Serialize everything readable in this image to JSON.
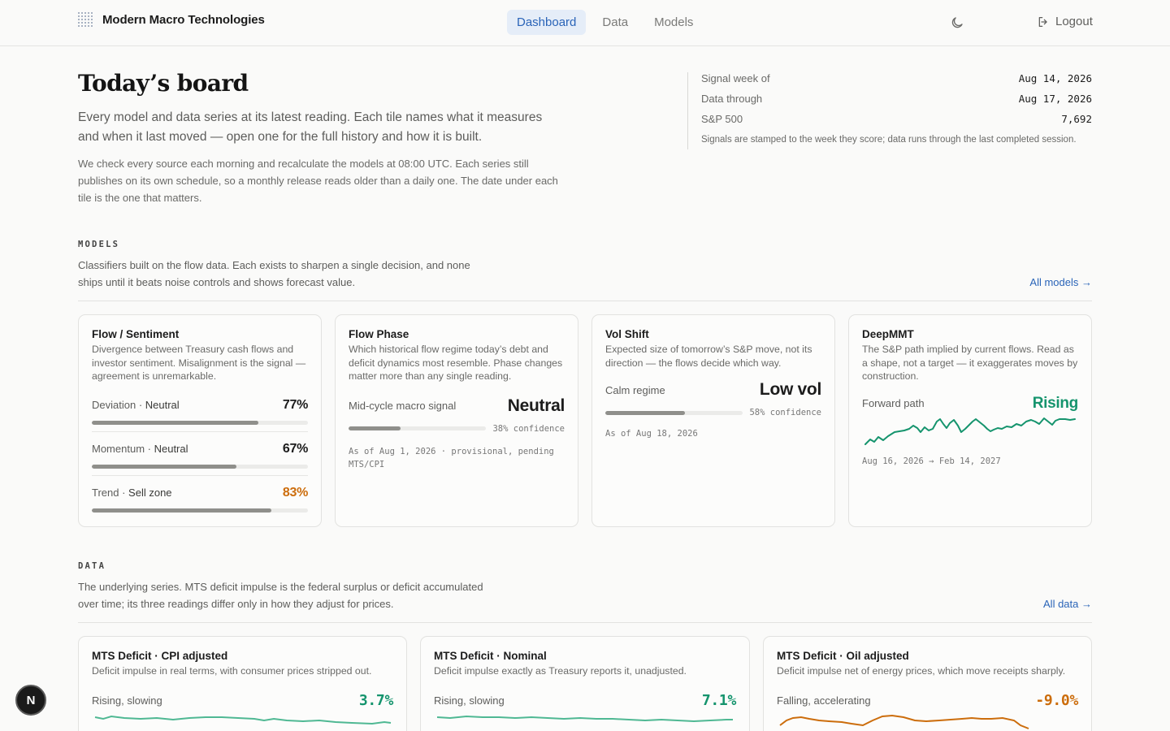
{
  "header": {
    "brand": "Modern Macro Technologies",
    "nav": [
      {
        "label": "Dashboard",
        "active": true
      },
      {
        "label": "Data",
        "active": false
      },
      {
        "label": "Models",
        "active": false
      }
    ],
    "theme_icon": "moon-icon",
    "logout_icon": "logout-icon",
    "logout_label": "Logout"
  },
  "hero": {
    "title": "Today’s board",
    "lead": "Every model and data series at its latest reading. Each tile names what it measures and when it last moved — open one for the full history and how it is built.",
    "body": "We check every source each morning and recalculate the models at 08:00 UTC. Each series still publishes on its own schedule, so a monthly release reads older than a daily one. The date under each tile is the one that matters."
  },
  "meta": {
    "rows": [
      {
        "label": "Signal week of",
        "value": "Aug 14, 2026"
      },
      {
        "label": "Data through",
        "value": "Aug 17, 2026"
      },
      {
        "label": "S&P 500",
        "value": "7,692"
      }
    ],
    "note": "Signals are stamped to the week they score; data runs through the last completed session."
  },
  "models": {
    "label": "MODELS",
    "desc": "Classifiers built on the flow data. Each exists to sharpen a single decision, and none ships until it beats noise controls and shows forecast value.",
    "link": "All models →",
    "cards": {
      "flow": {
        "title": "Flow / Sentiment",
        "desc": "Divergence between Treasury cash flows and investor sentiment. Misalignment is the signal — agreement is unremarkable.",
        "metrics": [
          {
            "name": "Deviation",
            "state": "Neutral",
            "value": "77%",
            "fill": 0.77,
            "color": "#1c1c1c"
          },
          {
            "name": "Momentum",
            "state": "Neutral",
            "value": "67%",
            "fill": 0.67,
            "color": "#1c1c1c"
          },
          {
            "name": "Trend",
            "state": "Sell zone",
            "value": "83%",
            "fill": 0.83,
            "color": "#cc6d0c"
          }
        ]
      },
      "phase": {
        "title": "Flow Phase",
        "desc": "Which historical flow regime today’s debt and deficit dynamics most resemble. Phase changes matter more than any single reading.",
        "label": "Mid-cycle macro signal",
        "value": "Neutral",
        "confidence": "38% confidence",
        "fill": 0.38,
        "asof": "As of Aug 1, 2026 · provisional, pending MTS/CPI"
      },
      "vol": {
        "title": "Vol Shift",
        "desc": "Expected size of tomorrow’s S&P move, not its direction — the flows decide which way.",
        "label": "Calm regime",
        "value": "Low vol",
        "confidence": "58% confidence",
        "fill": 0.58,
        "asof": "As of Aug 18, 2026"
      },
      "deep": {
        "title": "DeepMMT",
        "desc": "The S&P path implied by current flows. Read as a shape, not a target — it exaggerates moves by construction.",
        "label": "Forward path",
        "value": "Rising",
        "range": "Aug 16, 2026 → Feb 14, 2027",
        "color": "#15946d"
      }
    }
  },
  "data": {
    "label": "DATA",
    "desc": "The underlying series. MTS deficit impulse is the federal surplus or deficit accumulated over time; its three readings differ only in how they adjust for prices.",
    "link": "All data →",
    "cards": [
      {
        "title": "MTS Deficit · CPI adjusted",
        "desc": "Deficit impulse in real terms, with consumer prices stripped out.",
        "trend": "Rising, slowing",
        "value": "3.7%",
        "color": "#15946d"
      },
      {
        "title": "MTS Deficit · Nominal",
        "desc": "Deficit impulse exactly as Treasury reports it, unadjusted.",
        "trend": "Rising, slowing",
        "value": "7.1%",
        "color": "#15946d"
      },
      {
        "title": "MTS Deficit · Oil adjusted",
        "desc": "Deficit impulse net of energy prices, which move receipts sharply.",
        "trend": "Falling, accelerating",
        "value": "-9.0%",
        "color": "#cc6d0c"
      }
    ]
  },
  "avatar": {
    "initial": "N"
  }
}
